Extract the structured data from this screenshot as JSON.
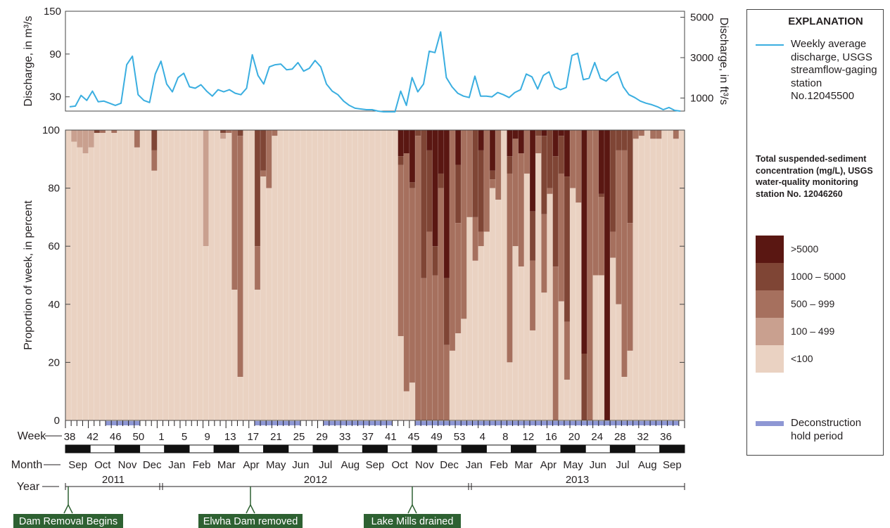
{
  "chart_data": {
    "type": "stacked-bar-with-line",
    "discharge": {
      "ylabel_left": "Discharge, in m³/s",
      "ylabel_right": "Discharge, in ft³/s",
      "yticks_left": [
        30,
        90,
        150
      ],
      "ylim": [
        10,
        150
      ],
      "yticks_right_cfs": [
        1000,
        3000,
        5000
      ],
      "series_name": "Weekly average discharge, USGS streamflow-gaging station No.12045500",
      "color": "#3aaee0",
      "values": [
        16,
        17,
        32,
        25,
        38,
        23,
        24,
        21,
        18,
        21,
        75,
        87,
        33,
        25,
        22,
        62,
        80,
        48,
        37,
        57,
        63,
        44,
        42,
        47,
        38,
        31,
        40,
        37,
        40,
        35,
        33,
        42,
        89,
        60,
        48,
        72,
        75,
        76,
        68,
        69,
        78,
        66,
        70,
        81,
        72,
        48,
        38,
        33,
        24,
        18,
        14,
        13,
        12,
        12,
        10,
        9,
        9,
        9,
        38,
        18,
        57,
        37,
        48,
        94,
        92,
        121,
        57,
        44,
        35,
        31,
        29,
        59,
        31,
        31,
        30,
        36,
        33,
        29,
        36,
        40,
        62,
        58,
        41,
        60,
        65,
        44,
        40,
        43,
        88,
        91,
        54,
        56,
        78,
        56,
        52,
        60,
        65,
        44,
        33,
        29,
        24,
        21,
        19,
        16,
        12,
        15,
        11,
        10
      ]
    },
    "sediment": {
      "ylabel": "Proportion of week, in percent",
      "yticks": [
        0,
        20,
        40,
        60,
        80,
        100
      ],
      "ylim": [
        0,
        100
      ],
      "xlabel": "Week",
      "bins": [
        ">5000",
        "1000 – 5000",
        "500 – 999",
        "100 – 499",
        "<100"
      ],
      "bin_colors": [
        "#5a1712",
        "#7f4535",
        "#a6705e",
        "#c9a08f",
        "#ead2c2"
      ],
      "boundaries": [
        [
          100,
          100,
          100,
          100,
          94,
          100,
          100,
          48,
          100,
          100,
          71,
          28,
          18,
          100,
          100,
          20,
          100,
          34,
          100,
          100,
          100,
          100,
          100,
          100,
          100,
          60,
          0,
          100,
          3,
          100,
          100,
          100,
          100,
          15,
          0,
          0,
          0,
          100,
          47,
          48,
          100,
          100,
          100,
          100,
          100,
          100,
          100,
          100,
          100,
          10,
          100,
          100,
          100,
          100,
          34,
          56,
          100,
          8,
          0,
          0,
          0,
          0,
          0,
          0,
          0,
          0,
          0,
          0,
          0,
          0,
          24,
          0,
          0,
          35,
          0,
          0,
          64,
          0,
          0,
          0,
          0,
          0,
          50,
          0,
          0,
          0,
          0,
          0,
          0,
          0,
          0,
          0,
          0,
          0,
          0,
          56,
          0,
          100,
          100,
          100,
          100,
          100,
          100,
          100,
          100,
          100,
          80,
          100
        ],
        [
          100,
          100,
          100,
          100,
          94,
          100,
          100,
          48,
          100,
          100,
          71,
          28,
          18,
          100,
          100,
          20,
          100,
          34,
          100,
          100,
          100,
          100,
          100,
          100,
          100,
          60,
          0,
          100,
          3,
          100,
          100,
          100,
          100,
          15,
          0,
          0,
          0,
          100,
          47,
          48,
          100,
          100,
          100,
          100,
          100,
          100,
          100,
          100,
          100,
          10,
          100,
          100,
          100,
          100,
          34,
          56,
          100,
          8,
          0,
          0,
          0,
          0,
          0,
          0,
          0,
          1,
          0,
          0,
          0,
          0,
          24,
          0,
          0,
          35,
          0,
          0,
          64,
          0,
          0,
          0,
          0,
          0,
          50,
          0,
          0,
          0,
          0,
          0,
          0,
          0,
          5,
          0,
          0,
          0,
          0,
          56,
          0,
          100,
          100,
          100,
          100,
          100,
          100,
          100,
          100,
          100,
          80,
          100
        ],
        [
          100,
          100,
          100,
          100,
          94,
          100,
          100,
          48,
          100,
          100,
          71,
          28,
          18,
          100,
          100,
          20,
          100,
          34,
          100,
          100,
          100,
          100,
          100,
          100,
          100,
          60,
          0,
          100,
          3,
          100,
          100,
          100,
          100,
          15,
          0,
          0,
          0,
          100,
          47,
          48,
          100,
          100,
          100,
          100,
          100,
          100,
          100,
          100,
          100,
          10,
          100,
          100,
          100,
          100,
          34,
          56,
          100,
          8,
          0,
          0,
          0,
          0,
          0,
          0,
          0,
          1,
          0,
          0,
          0,
          0,
          24,
          0,
          0,
          35,
          0,
          0,
          64,
          0,
          0,
          0,
          0,
          0,
          50,
          0,
          0,
          0,
          0,
          0,
          0,
          0,
          5,
          0,
          0,
          0,
          0,
          56,
          0,
          100,
          100,
          100,
          100,
          100,
          100,
          100,
          100,
          100,
          80,
          100
        ],
        [
          100,
          100,
          100,
          100,
          94,
          100,
          100,
          48,
          100,
          100,
          71,
          28,
          18,
          100,
          100,
          20,
          100,
          34,
          100,
          100,
          100,
          100,
          100,
          100,
          100,
          60,
          0,
          100,
          3,
          100,
          100,
          100,
          100,
          15,
          0,
          0,
          0,
          100,
          47,
          48,
          100,
          100,
          100,
          100,
          100,
          100,
          100,
          100,
          100,
          10,
          100,
          100,
          100,
          100,
          34,
          56,
          100,
          8,
          0,
          0,
          0,
          0,
          0,
          0,
          0,
          1,
          0,
          0,
          0,
          0,
          24,
          0,
          0,
          35,
          0,
          0,
          64,
          0,
          0,
          0,
          0,
          0,
          50,
          0,
          0,
          0,
          0,
          0,
          0,
          0,
          5,
          0,
          0,
          0,
          0,
          56,
          0,
          100,
          100,
          100,
          100,
          100,
          100,
          100,
          100,
          100,
          80,
          100
        ]
      ],
      "bin_boundaries": [
        [
          100,
          100,
          100,
          100,
          100,
          100,
          100,
          100,
          100,
          100,
          100,
          100,
          100,
          100,
          100,
          100,
          100,
          100,
          100,
          100,
          100,
          100,
          100,
          100,
          100,
          100,
          100,
          100,
          100,
          100,
          100,
          100,
          100,
          100,
          100,
          100,
          100,
          100,
          100,
          100,
          100,
          100,
          100,
          100,
          100,
          100,
          100,
          100,
          100,
          100,
          100,
          100,
          100,
          100,
          100,
          100,
          100,
          100,
          91,
          92,
          82,
          100,
          100,
          93,
          60,
          85,
          49,
          100,
          88,
          100,
          100,
          100,
          93,
          100,
          86,
          100,
          100,
          91,
          97,
          92,
          100,
          72,
          100,
          98,
          100,
          91,
          98,
          84,
          100,
          100,
          23,
          100,
          100,
          78,
          0,
          100,
          100,
          100,
          100,
          100,
          100,
          100,
          100,
          100,
          100,
          100,
          100,
          100
        ],
        [
          100,
          100,
          100,
          100,
          100,
          99,
          100,
          100,
          100,
          100,
          100,
          100,
          100,
          100,
          100,
          93,
          100,
          100,
          100,
          100,
          100,
          100,
          100,
          100,
          100,
          100,
          100,
          99,
          100,
          100,
          98,
          100,
          100,
          60,
          86,
          100,
          100,
          100,
          100,
          100,
          100,
          100,
          100,
          100,
          100,
          100,
          100,
          100,
          100,
          100,
          100,
          100,
          100,
          100,
          100,
          100,
          100,
          100,
          88,
          92,
          80,
          98,
          49,
          65,
          50,
          80,
          26,
          100,
          68,
          100,
          100,
          70,
          65,
          100,
          83,
          100,
          100,
          85,
          97,
          92,
          100,
          55,
          98,
          71,
          80,
          53,
          85,
          34,
          100,
          100,
          0,
          100,
          100,
          77,
          0,
          65,
          93,
          93,
          68,
          100,
          100,
          100,
          100,
          100,
          100,
          100,
          100,
          100
        ],
        [
          100,
          100,
          100,
          100,
          100,
          99,
          99,
          100,
          99,
          100,
          100,
          100,
          94,
          100,
          100,
          86,
          100,
          100,
          100,
          100,
          100,
          100,
          100,
          100,
          100,
          100,
          100,
          99,
          99,
          45,
          15,
          100,
          100,
          45,
          84,
          80,
          98,
          100,
          100,
          100,
          100,
          100,
          100,
          100,
          100,
          100,
          100,
          100,
          100,
          100,
          100,
          100,
          100,
          100,
          100,
          100,
          100,
          100,
          29,
          10,
          13,
          0,
          0,
          0,
          0,
          0,
          0,
          24,
          30,
          35,
          70,
          55,
          60,
          65,
          80,
          76,
          100,
          20,
          60,
          53,
          85,
          31,
          92,
          44,
          78,
          0,
          41,
          14,
          80,
          75,
          0,
          0,
          50,
          50,
          62,
          56,
          40,
          15,
          24,
          97,
          98,
          100,
          97,
          97,
          100,
          100,
          97,
          100
        ],
        [
          100,
          96,
          94,
          92,
          94,
          100,
          100,
          100,
          100,
          100,
          100,
          100,
          100,
          100,
          100,
          100,
          100,
          100,
          100,
          100,
          100,
          100,
          100,
          100,
          60,
          100,
          100,
          97,
          100,
          100,
          98,
          100,
          100,
          100,
          100,
          100,
          100,
          100,
          100,
          100,
          100,
          100,
          100,
          100,
          100,
          100,
          100,
          100,
          100,
          100,
          100,
          100,
          100,
          100,
          100,
          100,
          100,
          100,
          29,
          10,
          13,
          0,
          0,
          0,
          0,
          0,
          0,
          24,
          30,
          35,
          70,
          55,
          60,
          65,
          80,
          76,
          100,
          20,
          60,
          53,
          85,
          31,
          92,
          44,
          78,
          0,
          41,
          14,
          80,
          75,
          0,
          0,
          50,
          50,
          62,
          56,
          40,
          15,
          24,
          97,
          98,
          100,
          97,
          97,
          100,
          100,
          97,
          100
        ],
        [
          100,
          96,
          94,
          92,
          84,
          48,
          0,
          0,
          0,
          0,
          0,
          0,
          0,
          0,
          33,
          0,
          0,
          0,
          76,
          0,
          0,
          0,
          0,
          60,
          0,
          0,
          0,
          0,
          3,
          0,
          0,
          0,
          0,
          0,
          0,
          0,
          6,
          0,
          0,
          0,
          0,
          0,
          0,
          0,
          0,
          0,
          0,
          0,
          0,
          10,
          100,
          100,
          100,
          100,
          34,
          56,
          100,
          8,
          0,
          0,
          0,
          0,
          0,
          0,
          0,
          0,
          0,
          0,
          0,
          0,
          0,
          0,
          0,
          0,
          0,
          0,
          50,
          0,
          0,
          0,
          0,
          0,
          0,
          0,
          0,
          0,
          0,
          0,
          0,
          0,
          0,
          0,
          0,
          0,
          0,
          56,
          97,
          98,
          100,
          97,
          97,
          100,
          100,
          97,
          100,
          80,
          100
        ]
      ]
    },
    "week_ticks": [
      "38",
      "42",
      "46",
      "50",
      "1",
      "5",
      "9",
      "13",
      "17",
      "21",
      "25",
      "29",
      "33",
      "37",
      "41",
      "45",
      "49",
      "53",
      "4",
      "8",
      "12",
      "16",
      "20",
      "24",
      "28",
      "32",
      "36"
    ],
    "months": [
      "Sep",
      "Oct",
      "Nov",
      "Dec",
      "Jan",
      "Feb",
      "Mar",
      "Apr",
      "May",
      "Jun",
      "Jul",
      "Aug",
      "Sep",
      "Oct",
      "Nov",
      "Dec",
      "Jan",
      "Feb",
      "Mar",
      "Apr",
      "May",
      "Jun",
      "Jul",
      "Aug",
      "Sep"
    ],
    "years": [
      "2011",
      "2012",
      "2013"
    ],
    "month_label": "Month",
    "year_label": "Year",
    "events": [
      "Dam Removal Begins",
      "Elwha Dam removed",
      "Lake Mills drained"
    ],
    "hold_periods_weeks": [
      [
        7,
        13
      ],
      [
        33,
        41
      ],
      [
        45,
        57
      ],
      [
        61,
        107
      ]
    ],
    "hold_color": "#8e97d4",
    "event_color": "#2e6132"
  },
  "legend": {
    "title": "EXPLANATION",
    "line_label": "Weekly average discharge, USGS streamflow-gaging station No.12045500",
    "ssc_title": "Total suspended-sediment concentration (mg/L), USGS water-quality monitoring station No. 12046260",
    "bins": [
      ">5000",
      "1000 – 5000",
      "500 – 999",
      "100 – 499",
      "<100"
    ],
    "hold_label": "Deconstruction hold period"
  }
}
